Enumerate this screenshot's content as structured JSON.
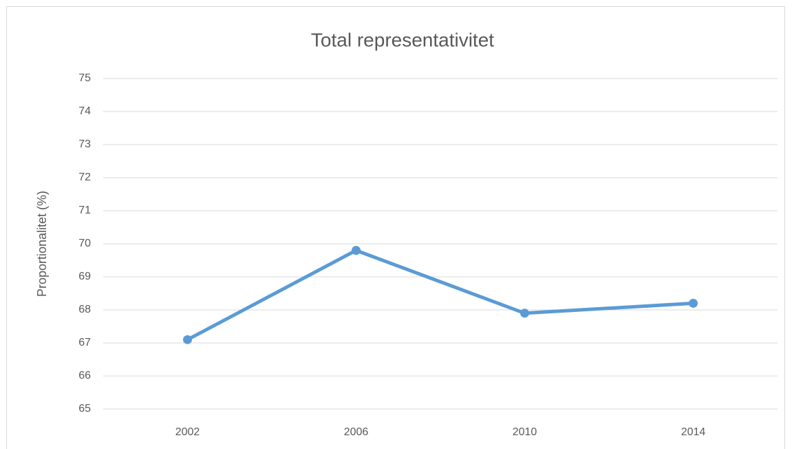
{
  "chart_data": {
    "type": "line",
    "title": "Total representativitet",
    "y_label": "Proportionalitet (%)",
    "categories": [
      "2002",
      "2006",
      "2010",
      "2014"
    ],
    "series": [
      {
        "name": "Total representativitet",
        "color": "#5b9bd5",
        "values": [
          67.1,
          69.8,
          67.9,
          68.2
        ]
      }
    ],
    "ylim": [
      65,
      75
    ],
    "yticks": [
      65,
      66,
      67,
      68,
      69,
      70,
      71,
      72,
      73,
      74,
      75
    ],
    "grid": true
  }
}
